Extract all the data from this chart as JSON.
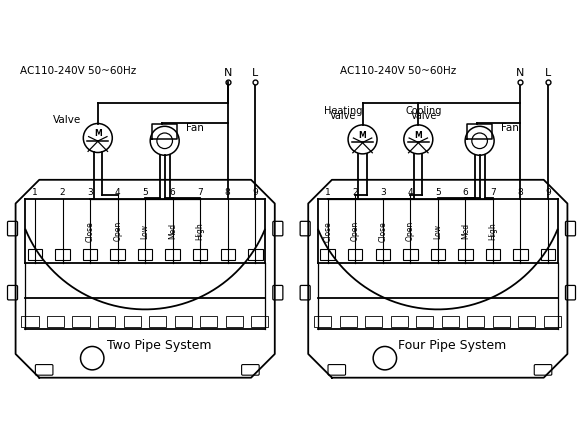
{
  "bg_color": "#ffffff",
  "line_color": "#000000",
  "left_title": "AC110-240V 50~60Hz",
  "right_title": "AC110-240V 50~60Hz",
  "left_label": "Two Pipe System",
  "right_label": "Four Pipe System",
  "left_valve_label": "Valve",
  "fan_label": "Fan",
  "right_heating_label": [
    "Heating",
    "Valve"
  ],
  "right_cooling_label": [
    "Cooling",
    "Valve"
  ],
  "N_label": "N",
  "L_label": "L",
  "left_rotated": [
    "Close",
    "Open",
    "Low",
    "Med",
    "High"
  ],
  "right_rotated": [
    "Close",
    "Open",
    "Close",
    "Open",
    "Low",
    "Med",
    "High"
  ]
}
